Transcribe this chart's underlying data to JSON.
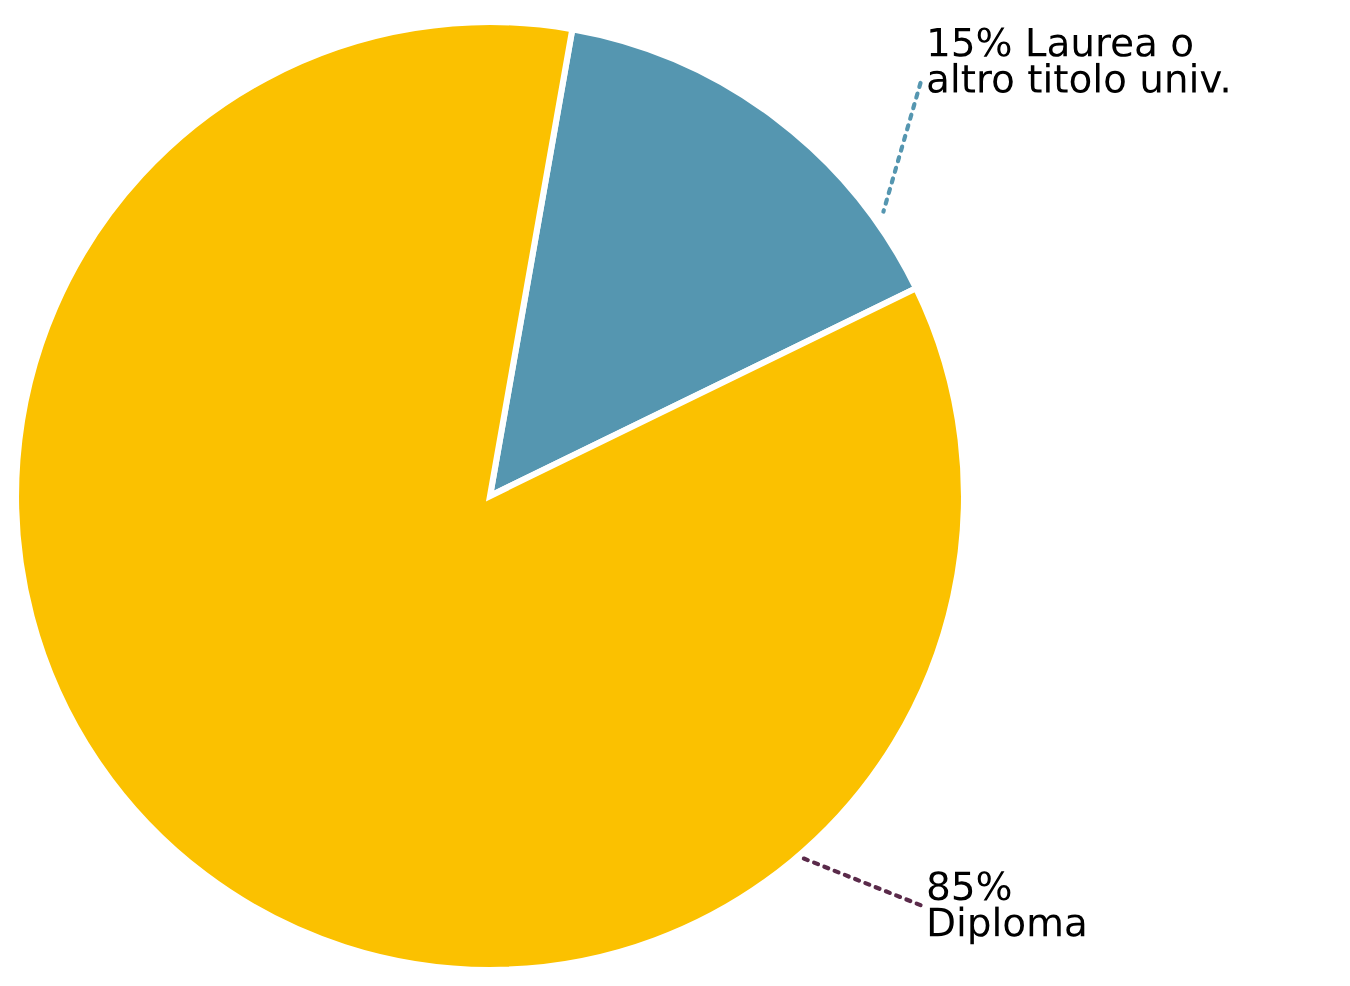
{
  "chart_data": {
    "type": "pie",
    "categories": [
      "15% Laurea o\naltro titolo univ.",
      "85%\nDiploma"
    ],
    "values": [
      15,
      85
    ],
    "colors": [
      "#5596b0",
      "#fbc100"
    ],
    "legend": false
  }
}
